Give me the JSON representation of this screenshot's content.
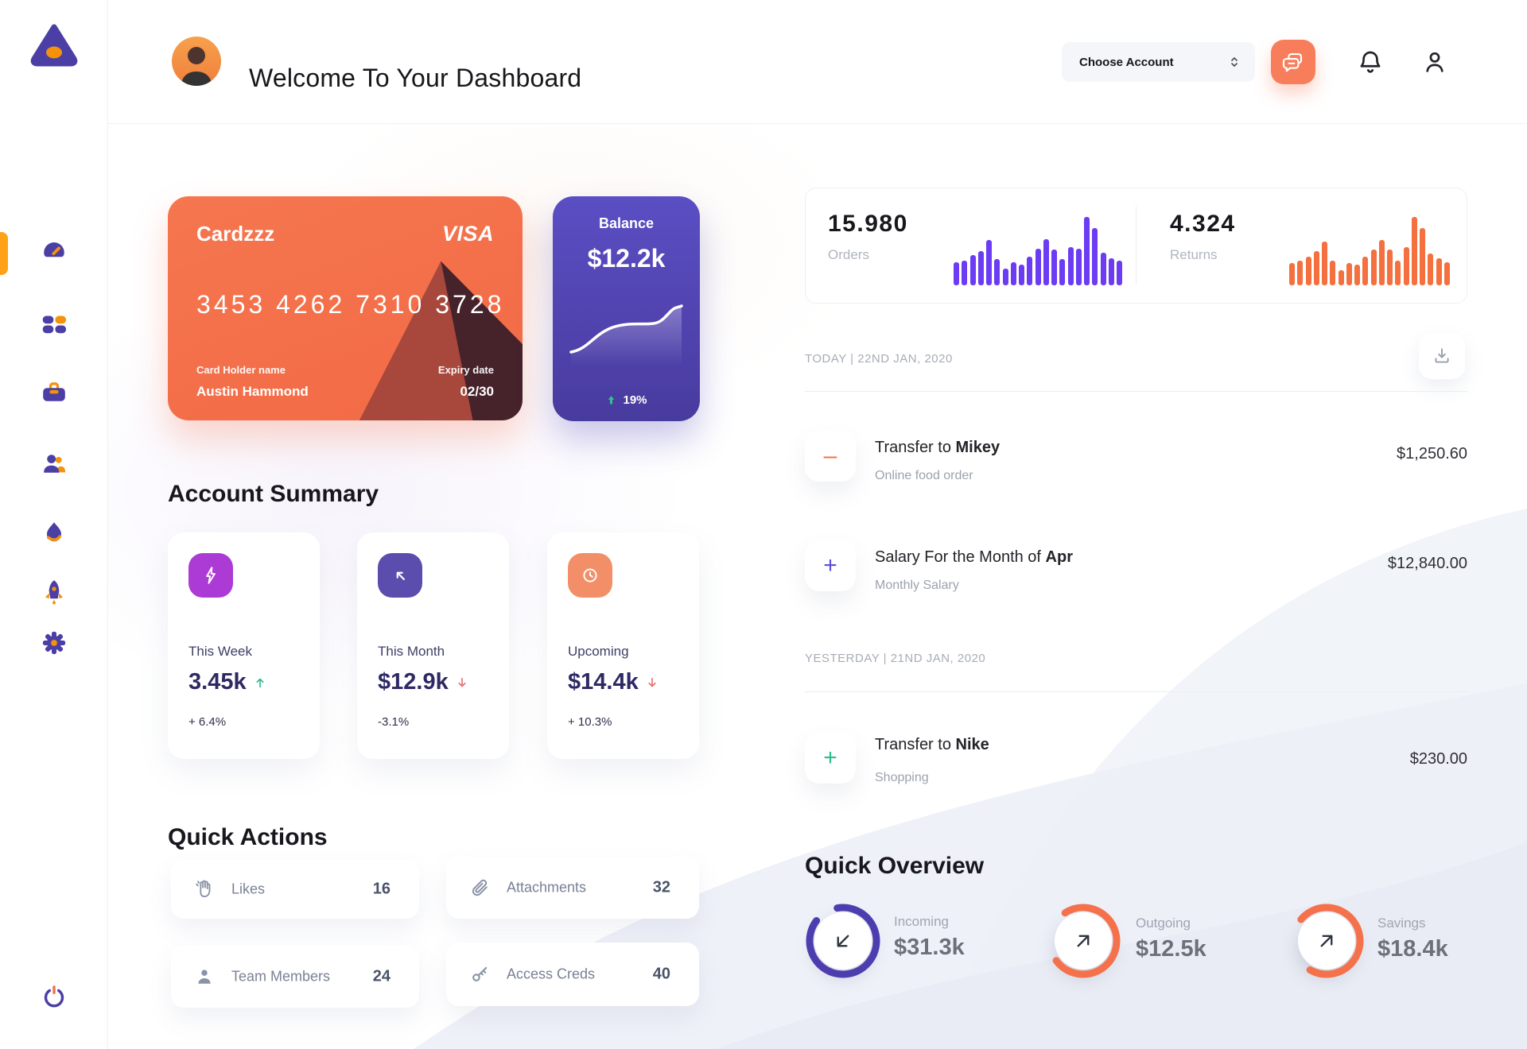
{
  "colors": {
    "accent_orange": "#F4714B",
    "accent_purple": "#4B3FA5",
    "active_pill": "#FFA216",
    "green": "#2EBD8D",
    "red": "#E8706E",
    "navy_value": "#2E2963"
  },
  "sidebar": {
    "logo_icon": "triangle-logo",
    "items": [
      {
        "icon": "speedometer-icon",
        "active": true
      },
      {
        "icon": "grid-icon",
        "active": false
      },
      {
        "icon": "briefcase-icon",
        "active": false
      },
      {
        "icon": "users-icon",
        "active": false
      },
      {
        "icon": "flame-icon",
        "active": false
      },
      {
        "icon": "rocket-icon",
        "active": false
      },
      {
        "icon": "gear-icon",
        "active": false
      }
    ],
    "power_icon": "power-icon"
  },
  "header": {
    "title": "Welcome To Your Dashboard",
    "account_select_label": "Choose Account",
    "icons": [
      "chat-icon",
      "bell-icon",
      "user-icon"
    ]
  },
  "bank_card": {
    "name": "Cardzzz",
    "brand": "VISA",
    "number": "3453 4262 7310 3728",
    "holder_label": "Card Holder name",
    "holder": "Austin Hammond",
    "expiry_label": "Expiry date",
    "expiry": "02/30"
  },
  "balance_card": {
    "label": "Balance",
    "value": "$12.2k",
    "delta": "19%",
    "trend": "up",
    "trend_color": "#35C08E"
  },
  "stats_panel": {
    "orders": {
      "value": "15.980",
      "label": "Orders"
    },
    "returns": {
      "value": "4.324",
      "label": "Returns"
    }
  },
  "chart_data": [
    {
      "type": "bar",
      "name": "orders-sparkline",
      "values": [
        34,
        36,
        44,
        50,
        66,
        38,
        24,
        34,
        30,
        42,
        54,
        68,
        52,
        38,
        56,
        54,
        100,
        84,
        48,
        40,
        36
      ],
      "color": "#6C3BF4"
    },
    {
      "type": "bar",
      "name": "returns-sparkline",
      "values": [
        32,
        36,
        42,
        50,
        64,
        36,
        22,
        32,
        30,
        42,
        52,
        66,
        52,
        36,
        56,
        100,
        84,
        46,
        40,
        34
      ],
      "color": "#F4703E"
    },
    {
      "type": "line",
      "name": "balance-trend",
      "values": [
        18,
        20,
        28,
        40,
        50,
        53,
        54,
        54,
        56,
        62,
        75,
        80
      ],
      "color": "#FFFFFF"
    }
  ],
  "account_summary": {
    "title": "Account Summary",
    "cards": [
      {
        "icon": "bolt-icon",
        "icon_bg": "#AC3BD6",
        "label": "This Week",
        "value": "3.45k",
        "trend": "up",
        "trend_color": "#2EBD8D",
        "delta": "+ 6.4%"
      },
      {
        "icon": "arrow-up-left-icon",
        "icon_bg": "#5A4DAE",
        "label": "This Month",
        "value": "$12.9k",
        "trend": "down",
        "trend_color": "#E8706E",
        "delta": "-3.1%"
      },
      {
        "icon": "clock-icon",
        "icon_bg": "#F28F69",
        "label": "Upcoming",
        "value": "$14.4k",
        "trend": "down",
        "trend_color": "#E8706E",
        "delta": "+ 10.3%"
      }
    ]
  },
  "quick_actions": {
    "title": "Quick Actions",
    "items": [
      {
        "icon": "clap-icon",
        "label": "Likes",
        "count": "16"
      },
      {
        "icon": "paperclip-icon",
        "label": "Attachments",
        "count": "32"
      },
      {
        "icon": "member-icon",
        "label": "Team Members",
        "count": "24"
      },
      {
        "icon": "key-icon",
        "label": "Access Creds",
        "count": "40"
      }
    ]
  },
  "transactions": {
    "download_icon": "download-icon",
    "groups": [
      {
        "date_label": "TODAY | 22ND JAN, 2020",
        "rows": [
          {
            "sign_char": "–",
            "sign_color": "#F4714B",
            "title_prefix": "Transfer to ",
            "title_bold": "Mikey",
            "subtitle": "Online food order",
            "amount": "$1,250.60"
          },
          {
            "sign_char": "+",
            "sign_color": "#5C4FE0",
            "title_prefix": "Salary For the Month of ",
            "title_bold": "Apr",
            "subtitle": "Monthly Salary",
            "amount": "$12,840.00"
          }
        ]
      },
      {
        "date_label": "YESTERDAY | 21ND JAN, 2020",
        "rows": [
          {
            "sign_char": "+",
            "sign_color": "#2EBD8D",
            "title_prefix": "Transfer to ",
            "title_bold": "Nike",
            "subtitle": "Shopping",
            "amount": "$230.00"
          }
        ]
      }
    ]
  },
  "quick_overview": {
    "title": "Quick Overview",
    "items": [
      {
        "label": "Incoming",
        "value": "$31.3k",
        "progress": 0.88,
        "color": "#4C3EAE",
        "arrow": "down-left"
      },
      {
        "label": "Outgoing",
        "value": "$12.5k",
        "progress": 0.74,
        "color": "#F4714B",
        "arrow": "up-right"
      },
      {
        "label": "Savings",
        "value": "$18.4k",
        "progress": 0.72,
        "color": "#F4714B",
        "arrow": "up-right"
      }
    ]
  }
}
